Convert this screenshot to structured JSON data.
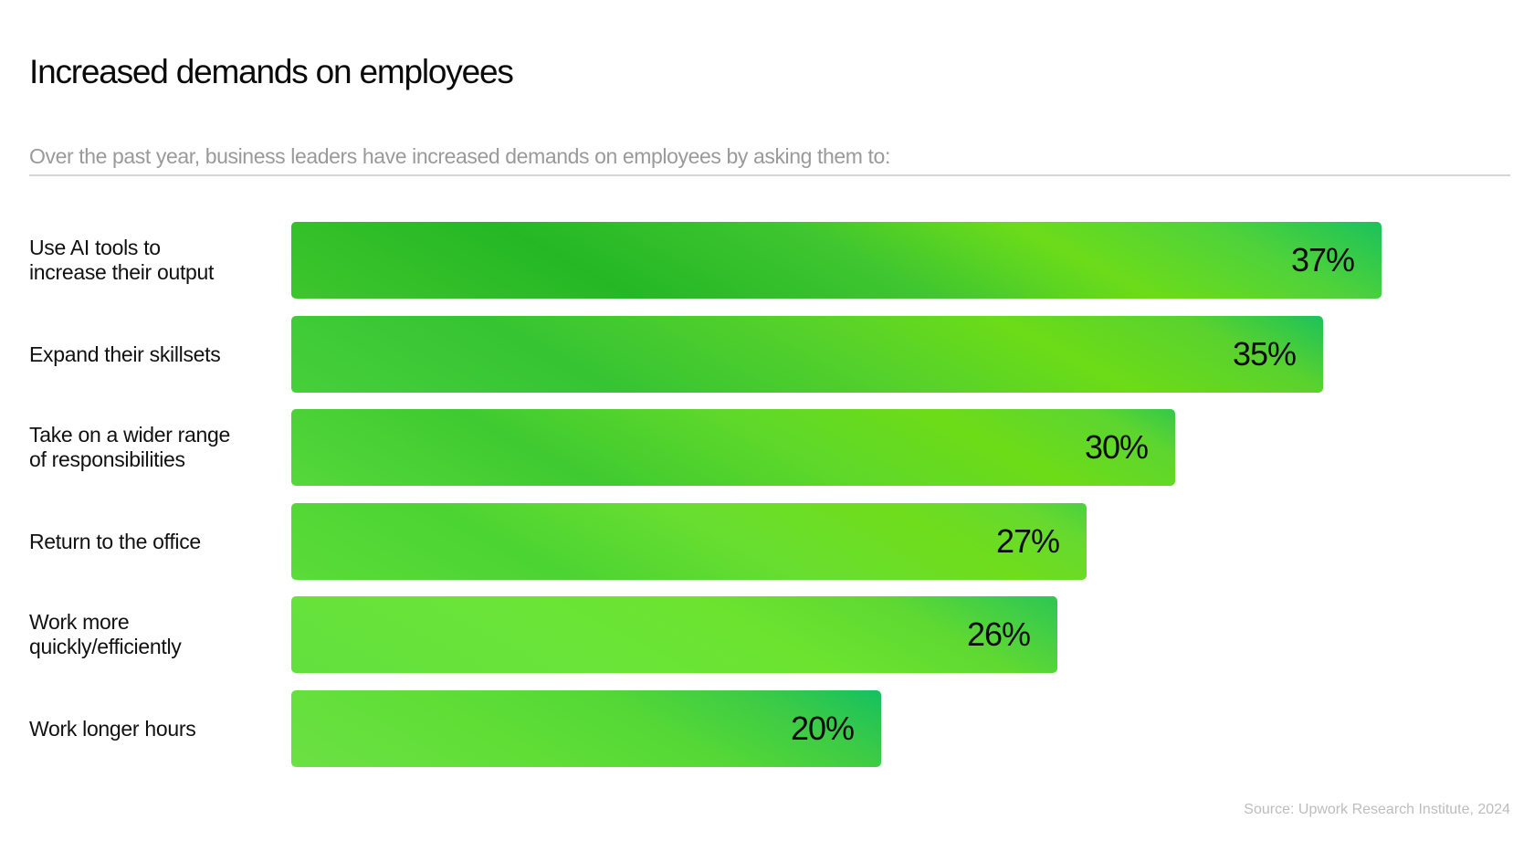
{
  "chart_data": {
    "type": "bar",
    "orientation": "horizontal",
    "title": "Increased demands on employees",
    "subtitle": "Over the past year, business leaders have increased demands on employees by asking them to:",
    "categories": [
      [
        "Use AI tools to",
        "increase their output"
      ],
      [
        "Expand their skillsets"
      ],
      [
        "Take on a wider range",
        "of responsibilities"
      ],
      [
        "Return to the office"
      ],
      [
        "Work more",
        "quickly/efficiently"
      ],
      [
        "Work longer hours"
      ]
    ],
    "values": [
      37,
      35,
      30,
      27,
      26,
      20
    ],
    "value_labels": [
      "37%",
      "35%",
      "30%",
      "27%",
      "26%",
      "20%"
    ],
    "unit": "%",
    "source": "Source: Upwork Research Institute, 2024",
    "colors": {
      "bar_dark": "#25b825",
      "bar_light": "#6cdc1a",
      "bar_end": "#1bc25b"
    }
  }
}
